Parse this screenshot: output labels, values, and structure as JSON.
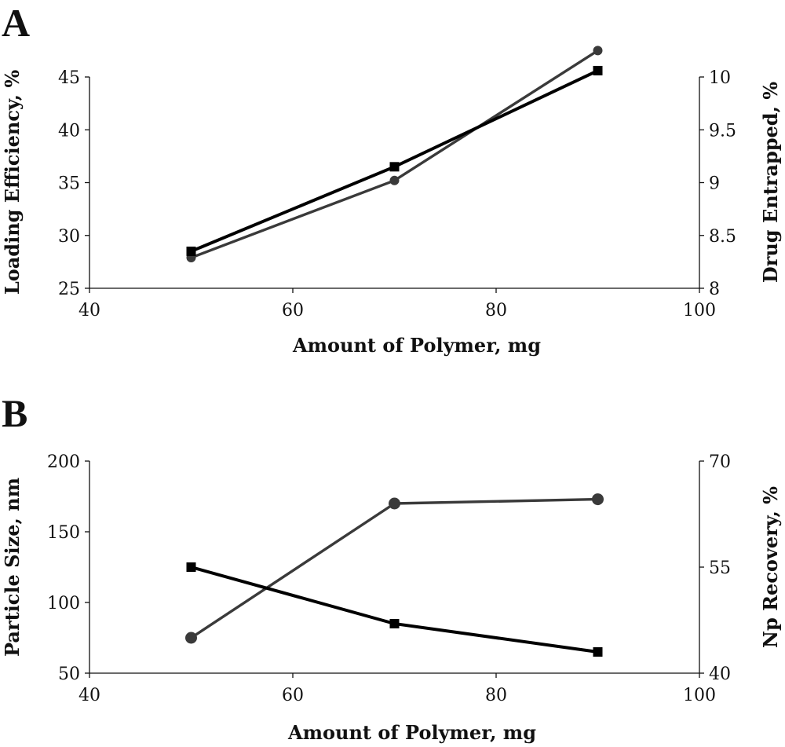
{
  "chart_data": [
    {
      "panel_label": "A",
      "type": "line",
      "xlabel": "Amount of Polymer, mg",
      "ylabel": "Loading Efficiency, %",
      "y2label": "Drug Entrapped, %",
      "xlim": [
        40,
        100
      ],
      "ylim": [
        25,
        45
      ],
      "y2lim": [
        8,
        10
      ],
      "x_ticks": [
        "40",
        "60",
        "80",
        "100"
      ],
      "y_ticks": [
        "25",
        "30",
        "35",
        "40",
        "45"
      ],
      "y2_ticks": [
        "8",
        "8.5",
        "9",
        "9.5",
        "10"
      ],
      "grid": false,
      "series": [
        {
          "axis": "left",
          "marker": "square",
          "color": "#000000",
          "x": [
            50,
            70,
            90
          ],
          "y": [
            28.5,
            36.5,
            45.6
          ]
        },
        {
          "axis": "right",
          "marker": "circle",
          "color": "#3a3a3a",
          "x": [
            50,
            70,
            90
          ],
          "y": [
            8.29,
            9.02,
            10.25
          ]
        }
      ]
    },
    {
      "panel_label": "B",
      "type": "line",
      "xlabel": "Amount of Polymer, mg",
      "ylabel": "Particle Size, nm",
      "y2label": "Np Recovery, %",
      "xlim": [
        40,
        100
      ],
      "ylim": [
        50,
        200
      ],
      "y2lim": [
        40,
        70
      ],
      "x_ticks": [
        "40",
        "60",
        "80",
        "100"
      ],
      "y_ticks": [
        "50",
        "100",
        "150",
        "200"
      ],
      "y2_ticks": [
        "40",
        "55",
        "70"
      ],
      "grid": false,
      "series": [
        {
          "axis": "left",
          "marker": "square",
          "color": "#000000",
          "x": [
            50,
            70,
            90
          ],
          "y": [
            125,
            85,
            65
          ]
        },
        {
          "axis": "right",
          "marker": "circle",
          "color": "#3a3a3a",
          "x": [
            50,
            70,
            90
          ],
          "y": [
            45,
            64,
            64.6
          ]
        }
      ]
    }
  ]
}
